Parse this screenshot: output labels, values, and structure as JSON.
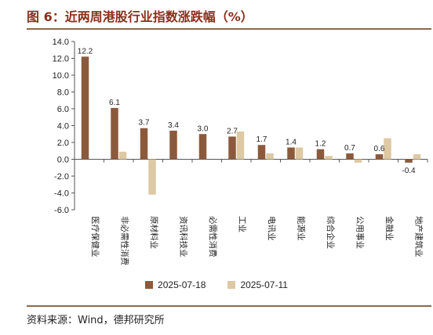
{
  "title": "图 6：近两周港股行业指数涨跌幅（%）",
  "source": "资料来源：Wind，德邦研究所",
  "chart_data": {
    "type": "bar",
    "categories": [
      "医疗保健业",
      "非必需性消费",
      "原材料业",
      "资讯科技业",
      "必需性消费",
      "工业",
      "电讯业",
      "能源业",
      "综合企业",
      "公用事业",
      "金融业",
      "地产建筑业"
    ],
    "series": [
      {
        "name": "2025-07-18",
        "color": "#8b5a3c",
        "values": [
          12.2,
          6.1,
          3.7,
          3.4,
          3.0,
          2.7,
          1.7,
          1.4,
          1.2,
          0.7,
          0.6,
          -0.4
        ]
      },
      {
        "name": "2025-07-11",
        "color": "#ddc9a3",
        "values": [
          0.0,
          0.9,
          -4.2,
          0.0,
          0.0,
          3.3,
          0.7,
          1.4,
          0.4,
          -0.4,
          2.5,
          0.6
        ]
      }
    ],
    "data_labels": [
      "12.2",
      "6.1",
      "3.7",
      "3.4",
      "3.0",
      "2.7",
      "1.7",
      "1.4",
      "1.2",
      "0.7",
      "0.6",
      "-0.4"
    ],
    "ylim": [
      -6.0,
      14.0
    ],
    "yticks": [
      "-6.0",
      "-4.0",
      "-2.0",
      "0.0",
      "2.0",
      "4.0",
      "6.0",
      "8.0",
      "10.0",
      "12.0",
      "14.0"
    ],
    "grid": false,
    "legend": "bottom"
  }
}
